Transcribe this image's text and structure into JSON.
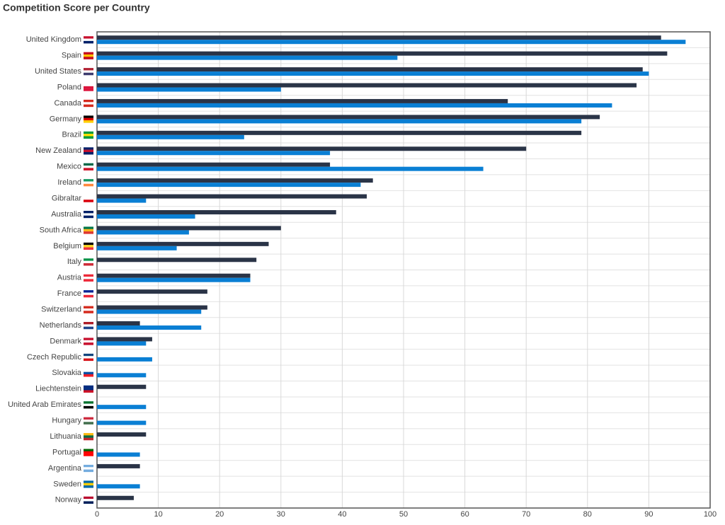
{
  "chart_data": {
    "type": "bar",
    "orientation": "horizontal",
    "title": "Competition Score per Country",
    "categories": [
      "United Kingdom",
      "Spain",
      "United States",
      "Poland",
      "Canada",
      "Germany",
      "Brazil",
      "New Zealand",
      "Mexico",
      "Ireland",
      "Gibraltar",
      "Australia",
      "South Africa",
      "Belgium",
      "Italy",
      "Austria",
      "France",
      "Switzerland",
      "Netherlands",
      "Denmark",
      "Czech Republic",
      "Slovakia",
      "Liechtenstein",
      "United Arab Emirates",
      "Hungary",
      "Lithuania",
      "Portugal",
      "Argentina",
      "Sweden",
      "Norway"
    ],
    "series": [
      {
        "color": "#2a3447",
        "values": [
          92,
          93,
          89,
          88,
          67,
          82,
          79,
          70,
          38,
          45,
          44,
          39,
          30,
          28,
          26,
          25,
          18,
          18,
          7,
          9,
          null,
          null,
          8,
          null,
          null,
          8,
          null,
          7,
          null,
          6
        ]
      },
      {
        "color": "#0a7fd4",
        "values": [
          96,
          49,
          90,
          30,
          84,
          79,
          24,
          38,
          63,
          43,
          8,
          16,
          15,
          13,
          null,
          25,
          null,
          17,
          17,
          8,
          9,
          8,
          null,
          8,
          8,
          null,
          7,
          null,
          7,
          null
        ]
      }
    ],
    "xlim": [
      0,
      100
    ],
    "xticks": [
      0,
      10,
      20,
      30,
      40,
      50,
      60,
      70,
      80,
      90,
      100
    ],
    "grid": true
  }
}
